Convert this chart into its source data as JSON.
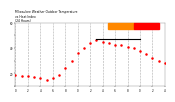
{
  "title": "Milwaukee Weather Outdoor Temperature\nvs Heat Index\n(24 Hours)",
  "title_fontsize": 2.2,
  "background_color": "#ffffff",
  "grid_color": "#aaaaaa",
  "temp_color": "#ff0000",
  "heat_color": "#000000",
  "legend_bar_orange": "#ff8800",
  "legend_bar_red": "#ff0000",
  "xlim": [
    0,
    24
  ],
  "ylim": [
    10,
    60
  ],
  "ytick_labels": [
    "",
    "20",
    "",
    "40",
    "",
    "60"
  ],
  "yticks": [
    10,
    20,
    30,
    40,
    50,
    60
  ],
  "xticks": [
    0,
    2,
    4,
    6,
    8,
    10,
    12,
    14,
    16,
    18,
    20,
    22,
    24
  ],
  "xtick_labels": [
    "0",
    "2",
    "4",
    "6",
    "8",
    "0",
    "2",
    "4",
    "6",
    "8",
    "0",
    "2",
    "4"
  ],
  "tick_fontsize": 2.0,
  "temp_x": [
    0,
    1,
    2,
    3,
    4,
    5,
    6,
    7,
    8,
    9,
    10,
    11,
    12,
    13,
    14,
    15,
    16,
    17,
    18,
    19,
    20,
    21,
    22,
    23,
    24
  ],
  "temp_y": [
    19,
    18,
    18,
    17,
    16,
    15,
    16,
    19,
    24,
    30,
    36,
    40,
    44,
    46,
    45,
    44,
    42,
    42,
    41,
    40,
    38,
    35,
    32,
    30,
    28
  ],
  "heat_x_start": 13,
  "heat_x_end": 20,
  "heat_y": 47,
  "markersize": 0.8,
  "heat_linewidth": 0.8
}
